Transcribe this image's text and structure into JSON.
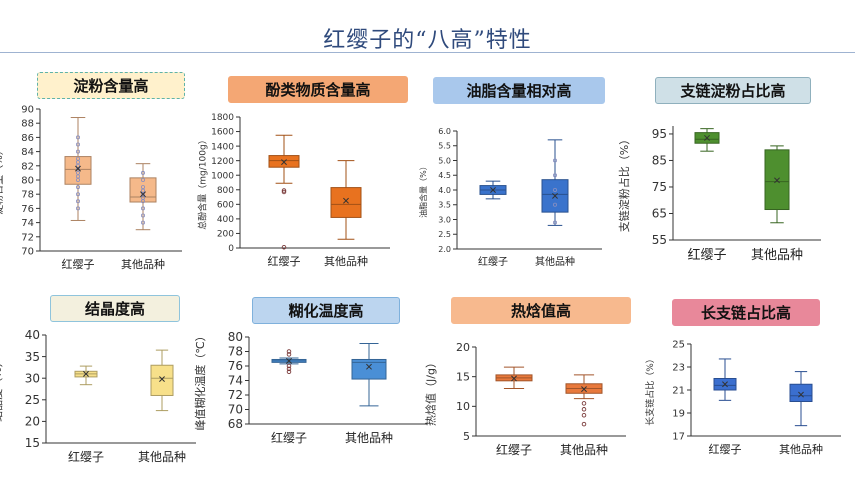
{
  "page": {
    "title": "红缨子的“八高”特性"
  },
  "chart_data": [
    {
      "type": "box",
      "title": "淀粉含量高",
      "ylabel": "淀粉含量（%）",
      "ylim": [
        70,
        90
      ],
      "yticks": [
        70,
        72,
        74,
        76,
        78,
        80,
        82,
        84,
        86,
        88,
        90
      ],
      "categories": [
        "红缨子",
        "其他品种"
      ],
      "boxes": [
        {
          "min": 74.3,
          "q1": 79.4,
          "median": 81.5,
          "q3": 83.3,
          "max": 88.8,
          "mean": 81.6,
          "points": [
            76,
            77,
            78,
            79,
            80,
            80.5,
            81,
            81.5,
            82,
            82.5,
            83,
            84,
            85,
            86
          ],
          "outliers": []
        },
        {
          "min": 73.0,
          "q1": 76.9,
          "median": 77.6,
          "q3": 80.3,
          "max": 82.3,
          "mean": 78.0,
          "points": [
            74,
            75,
            76,
            77,
            77.5,
            78,
            78.5,
            79,
            80,
            81
          ],
          "outliers": []
        }
      ],
      "colors": [
        "#f5b98a",
        "#f5b98a"
      ],
      "title_bg": "#fff1cc",
      "title_border": "#5fb3a9",
      "title_border_style": "dashed"
    },
    {
      "type": "box",
      "title": "酚类物质含量高",
      "ylabel": "总酚含量（mg/100g）",
      "ylim": [
        0,
        1800
      ],
      "yticks": [
        0,
        200,
        400,
        600,
        800,
        1000,
        1200,
        1400,
        1600,
        1800
      ],
      "categories": [
        "红缨子",
        "其他品种"
      ],
      "boxes": [
        {
          "min": 890,
          "q1": 1110,
          "median": 1200,
          "q3": 1270,
          "max": 1550,
          "mean": 1180,
          "points": [],
          "outliers": [
            790,
            770,
            10
          ]
        },
        {
          "min": 120,
          "q1": 420,
          "median": 600,
          "q3": 830,
          "max": 1200,
          "mean": 650,
          "points": [],
          "outliers": []
        }
      ],
      "colors": [
        "#e8721f",
        "#e8721f"
      ],
      "title_bg": "#f4a774",
      "title_border": "#f4a774",
      "title_border_style": "solid"
    },
    {
      "type": "box",
      "title": "油脂含量相对高",
      "ylabel": "油脂含量（%）",
      "ylim": [
        2.0,
        6.0
      ],
      "yticks": [
        "2.0",
        "2.5",
        "3.0",
        "3.5",
        "4.0",
        "4.5",
        "5.0",
        "5.5",
        "6.0"
      ],
      "categories": [
        "红缨子",
        "其他品种"
      ],
      "boxes": [
        {
          "min": 3.7,
          "q1": 3.85,
          "median": 4.0,
          "q3": 4.15,
          "max": 4.3,
          "mean": 4.0,
          "points": [],
          "outliers": []
        },
        {
          "min": 2.8,
          "q1": 3.25,
          "median": 3.85,
          "q3": 4.35,
          "max": 5.7,
          "mean": 3.8,
          "points": [
            2.9,
            3.5,
            4.0,
            4.5,
            5.0
          ],
          "outliers": []
        }
      ],
      "colors": [
        "#3a73cc",
        "#3a73cc"
      ],
      "title_bg": "#a9c8ec",
      "title_border": "#a9c8ec",
      "title_border_style": "solid"
    },
    {
      "type": "box",
      "title": "支链淀粉占比高",
      "ylabel": "支链淀粉占比（%）",
      "ylim": [
        55,
        98
      ],
      "yticks": [
        55,
        65,
        75,
        85,
        95
      ],
      "categories": [
        "红缨子",
        "其他品种"
      ],
      "boxes": [
        {
          "min": 88.5,
          "q1": 91.5,
          "median": 93.0,
          "q3": 95.5,
          "max": 97.0,
          "mean": 93.5,
          "points": [],
          "outliers": []
        },
        {
          "min": 61.5,
          "q1": 66.5,
          "median": 77.0,
          "q3": 89.0,
          "max": 90.5,
          "mean": 77.5,
          "points": [],
          "outliers": []
        }
      ],
      "colors": [
        "#4e8f2f",
        "#4e8f2f"
      ],
      "title_bg": "#cfe0e7",
      "title_border": "#8fb0bd",
      "title_border_style": "solid"
    },
    {
      "type": "box",
      "title": "结晶度高",
      "ylabel": "结晶度（%）",
      "ylim": [
        15,
        40
      ],
      "yticks": [
        15,
        20,
        25,
        30,
        35,
        40
      ],
      "categories": [
        "红缨子",
        "其他品种"
      ],
      "boxes": [
        {
          "min": 28.5,
          "q1": 30.3,
          "median": 31.0,
          "q3": 31.6,
          "max": 32.8,
          "mean": 31.0,
          "points": [],
          "outliers": []
        },
        {
          "min": 22.5,
          "q1": 26.0,
          "median": 30.0,
          "q3": 33.0,
          "max": 36.5,
          "mean": 29.8,
          "points": [],
          "outliers": []
        }
      ],
      "colors": [
        "#f7e08a",
        "#f7e08a"
      ],
      "title_bg": "#f3f0de",
      "title_border": "#8fc4dc",
      "title_border_style": "solid"
    },
    {
      "type": "box",
      "title": "糊化温度高",
      "ylabel": "峰值糊化温度（℃）",
      "ylim": [
        68,
        80
      ],
      "yticks": [
        68,
        70,
        72,
        74,
        76,
        78,
        80
      ],
      "categories": [
        "红缨子",
        "其他品种"
      ],
      "boxes": [
        {
          "min": 76.3,
          "q1": 76.5,
          "median": 76.7,
          "q3": 76.9,
          "max": 77.1,
          "mean": 76.7,
          "points": [],
          "outliers": [
            75.2,
            75.6,
            76.0,
            77.6,
            78.0
          ]
        },
        {
          "min": 70.5,
          "q1": 74.2,
          "median": 76.5,
          "q3": 76.9,
          "max": 79.1,
          "mean": 75.9,
          "points": [],
          "outliers": []
        }
      ],
      "colors": [
        "#4a8fd6",
        "#4a8fd6"
      ],
      "title_bg": "#bcd5ef",
      "title_border": "#7fb1dc",
      "title_border_style": "solid"
    },
    {
      "type": "box",
      "title": "热焓值高",
      "ylabel": "热焓值（J/g）",
      "ylim": [
        5,
        20
      ],
      "yticks": [
        5,
        10,
        15,
        20
      ],
      "categories": [
        "红缨子",
        "其他品种"
      ],
      "boxes": [
        {
          "min": 13.0,
          "q1": 14.3,
          "median": 14.8,
          "q3": 15.3,
          "max": 16.6,
          "mean": 14.7,
          "points": [],
          "outliers": []
        },
        {
          "min": 11.3,
          "q1": 12.2,
          "median": 13.0,
          "q3": 13.8,
          "max": 15.3,
          "mean": 12.9,
          "points": [],
          "outliers": [
            7.0,
            8.5,
            9.5,
            10.5
          ]
        }
      ],
      "colors": [
        "#e8793c",
        "#e8793c"
      ],
      "title_bg": "#f7b98e",
      "title_border": "#f7b98e",
      "title_border_style": "solid"
    },
    {
      "type": "box",
      "title": "长支链占比高",
      "ylabel": "长支链占比（%）",
      "ylim": [
        17,
        25
      ],
      "yticks": [
        17,
        19,
        21,
        23,
        25
      ],
      "categories": [
        "红缨子",
        "其他品种"
      ],
      "boxes": [
        {
          "min": 20.1,
          "q1": 21.0,
          "median": 21.4,
          "q3": 22.0,
          "max": 23.7,
          "mean": 21.5,
          "points": [],
          "outliers": []
        },
        {
          "min": 17.9,
          "q1": 20.0,
          "median": 20.5,
          "q3": 21.5,
          "max": 22.6,
          "mean": 20.6,
          "points": [],
          "outliers": []
        }
      ],
      "colors": [
        "#3b6fcf",
        "#3b6fcf"
      ],
      "title_bg": "#e8889a",
      "title_border": "#e8889a",
      "title_border_style": "solid"
    }
  ]
}
